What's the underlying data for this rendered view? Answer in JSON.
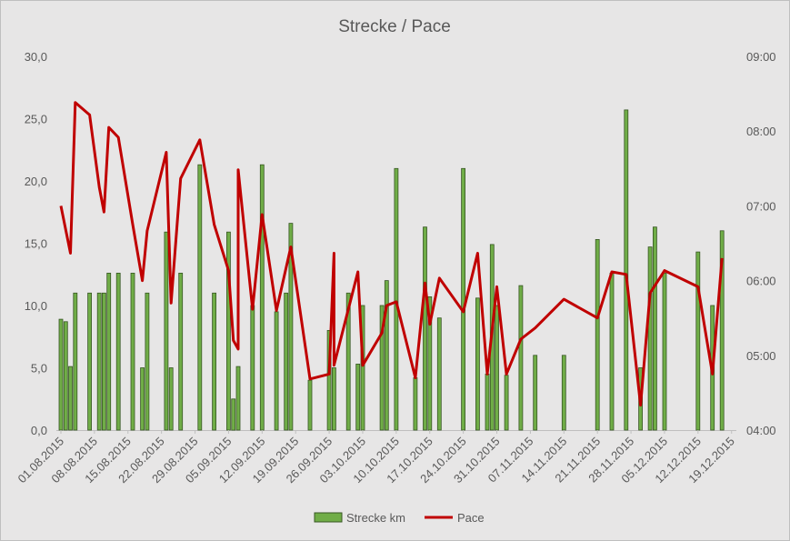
{
  "chart_data": {
    "type": "bar+line",
    "title": "Strecke / Pace",
    "start_date": "2015-08-01",
    "end_date": "2015-12-20",
    "x_tick_labels": [
      "01.08.2015",
      "08.08.2015",
      "15.08.2015",
      "22.08.2015",
      "29.08.2015",
      "05.09.2015",
      "12.09.2015",
      "19.09.2015",
      "26.09.2015",
      "03.10.2015",
      "10.10.2015",
      "17.10.2015",
      "24.10.2015",
      "31.10.2015",
      "07.11.2015",
      "14.11.2015",
      "21.11.2015",
      "28.11.2015",
      "05.12.2015",
      "12.12.2015",
      "19.12.2015"
    ],
    "y_left": {
      "ticks": [
        "0,0",
        "5,0",
        "10,0",
        "15,0",
        "20,0",
        "25,0",
        "30,0"
      ],
      "min": 0,
      "max": 30
    },
    "y_right": {
      "ticks": [
        "04:00",
        "05:00",
        "06:00",
        "07:00",
        "08:00",
        "09:00"
      ],
      "min_minutes": 240,
      "max_minutes": 540
    },
    "series": [
      {
        "name": "Strecke km",
        "type": "bar",
        "color": "#70ad47",
        "border": "#375623",
        "points": [
          [
            "2015-08-01",
            8.9
          ],
          [
            "2015-08-02",
            8.7
          ],
          [
            "2015-08-03",
            5.1
          ],
          [
            "2015-08-04",
            11.0
          ],
          [
            "2015-08-07",
            11.0
          ],
          [
            "2015-08-09",
            11.0
          ],
          [
            "2015-08-10",
            11.0
          ],
          [
            "2015-08-11",
            12.6
          ],
          [
            "2015-08-13",
            12.6
          ],
          [
            "2015-08-16",
            12.6
          ],
          [
            "2015-08-18",
            5.0
          ],
          [
            "2015-08-19",
            11.0
          ],
          [
            "2015-08-23",
            15.9
          ],
          [
            "2015-08-24",
            5.0
          ],
          [
            "2015-08-26",
            12.6
          ],
          [
            "2015-08-30",
            21.3
          ],
          [
            "2015-09-02",
            11.0
          ],
          [
            "2015-09-05",
            15.9
          ],
          [
            "2015-09-06",
            2.5
          ],
          [
            "2015-09-07",
            5.1
          ],
          [
            "2015-09-10",
            10.0
          ],
          [
            "2015-09-12",
            21.3
          ],
          [
            "2015-09-15",
            9.5
          ],
          [
            "2015-09-17",
            11.0
          ],
          [
            "2015-09-18",
            16.6
          ],
          [
            "2015-09-22",
            4.0
          ],
          [
            "2015-09-26",
            8.0
          ],
          [
            "2015-09-27",
            5.0
          ],
          [
            "2015-09-30",
            11.0
          ],
          [
            "2015-10-02",
            5.3
          ],
          [
            "2015-10-03",
            10.0
          ],
          [
            "2015-10-07",
            10.0
          ],
          [
            "2015-10-08",
            12.0
          ],
          [
            "2015-10-10",
            21.0
          ],
          [
            "2015-10-14",
            4.2
          ],
          [
            "2015-10-16",
            16.3
          ],
          [
            "2015-10-17",
            10.7
          ],
          [
            "2015-10-19",
            9.0
          ],
          [
            "2015-10-24",
            21.0
          ],
          [
            "2015-10-27",
            10.6
          ],
          [
            "2015-10-29",
            4.5
          ],
          [
            "2015-10-30",
            14.9
          ],
          [
            "2015-10-31",
            10.0
          ],
          [
            "2015-11-02",
            4.4
          ],
          [
            "2015-11-05",
            11.6
          ],
          [
            "2015-11-08",
            6.0
          ],
          [
            "2015-11-14",
            6.0
          ],
          [
            "2015-11-21",
            15.3
          ],
          [
            "2015-11-24",
            12.6
          ],
          [
            "2015-11-27",
            25.7
          ],
          [
            "2015-11-30",
            5.0
          ],
          [
            "2015-12-02",
            14.7
          ],
          [
            "2015-12-03",
            16.3
          ],
          [
            "2015-12-05",
            12.6
          ],
          [
            "2015-12-12",
            14.3
          ],
          [
            "2015-12-15",
            10.0
          ],
          [
            "2015-12-17",
            16.0
          ]
        ]
      },
      {
        "name": "Pace",
        "type": "line",
        "color": "#c00000",
        "points": [
          [
            "2015-08-01",
            "07:00"
          ],
          [
            "2015-08-03",
            "06:22"
          ],
          [
            "2015-08-04",
            "08:23"
          ],
          [
            "2015-08-07",
            "08:13"
          ],
          [
            "2015-08-09",
            "07:15"
          ],
          [
            "2015-08-10",
            "06:55"
          ],
          [
            "2015-08-11",
            "08:03"
          ],
          [
            "2015-08-13",
            "07:55"
          ],
          [
            "2015-08-16",
            "06:45"
          ],
          [
            "2015-08-18",
            "06:00"
          ],
          [
            "2015-08-19",
            "06:40"
          ],
          [
            "2015-08-23",
            "07:43"
          ],
          [
            "2015-08-24",
            "05:42"
          ],
          [
            "2015-08-26",
            "07:22"
          ],
          [
            "2015-08-30",
            "07:53"
          ],
          [
            "2015-09-02",
            "06:45"
          ],
          [
            "2015-09-05",
            "06:08"
          ],
          [
            "2015-09-06",
            "05:12"
          ],
          [
            "2015-09-07",
            "05:05"
          ],
          [
            "2015-09-07",
            "07:29"
          ],
          [
            "2015-09-10",
            "05:37"
          ],
          [
            "2015-09-12",
            "06:53"
          ],
          [
            "2015-09-15",
            "05:36"
          ],
          [
            "2015-09-18",
            "06:27"
          ],
          [
            "2015-09-22",
            "04:41"
          ],
          [
            "2015-09-26",
            "04:45"
          ],
          [
            "2015-09-27",
            "06:22"
          ],
          [
            "2015-09-27",
            "04:52"
          ],
          [
            "2015-10-02",
            "06:07"
          ],
          [
            "2015-10-03",
            "04:52"
          ],
          [
            "2015-10-07",
            "05:18"
          ],
          [
            "2015-10-08",
            "05:40"
          ],
          [
            "2015-10-10",
            "05:43"
          ],
          [
            "2015-10-14",
            "04:42"
          ],
          [
            "2015-10-16",
            "05:58"
          ],
          [
            "2015-10-17",
            "05:25"
          ],
          [
            "2015-10-19",
            "06:02"
          ],
          [
            "2015-10-24",
            "05:35"
          ],
          [
            "2015-10-27",
            "06:22"
          ],
          [
            "2015-10-29",
            "04:45"
          ],
          [
            "2015-10-31",
            "05:55"
          ],
          [
            "2015-11-02",
            "04:45"
          ],
          [
            "2015-11-05",
            "05:13"
          ],
          [
            "2015-11-08",
            "05:22"
          ],
          [
            "2015-11-14",
            "05:45"
          ],
          [
            "2015-11-21",
            "05:30"
          ],
          [
            "2015-11-24",
            "06:07"
          ],
          [
            "2015-11-27",
            "06:05"
          ],
          [
            "2015-11-30",
            "04:20"
          ],
          [
            "2015-12-02",
            "05:50"
          ],
          [
            "2015-12-05",
            "06:08"
          ],
          [
            "2015-12-12",
            "05:55"
          ],
          [
            "2015-12-15",
            "04:45"
          ],
          [
            "2015-12-17",
            "06:18"
          ]
        ]
      }
    ],
    "legend": {
      "position": "bottom"
    },
    "grid": false
  }
}
